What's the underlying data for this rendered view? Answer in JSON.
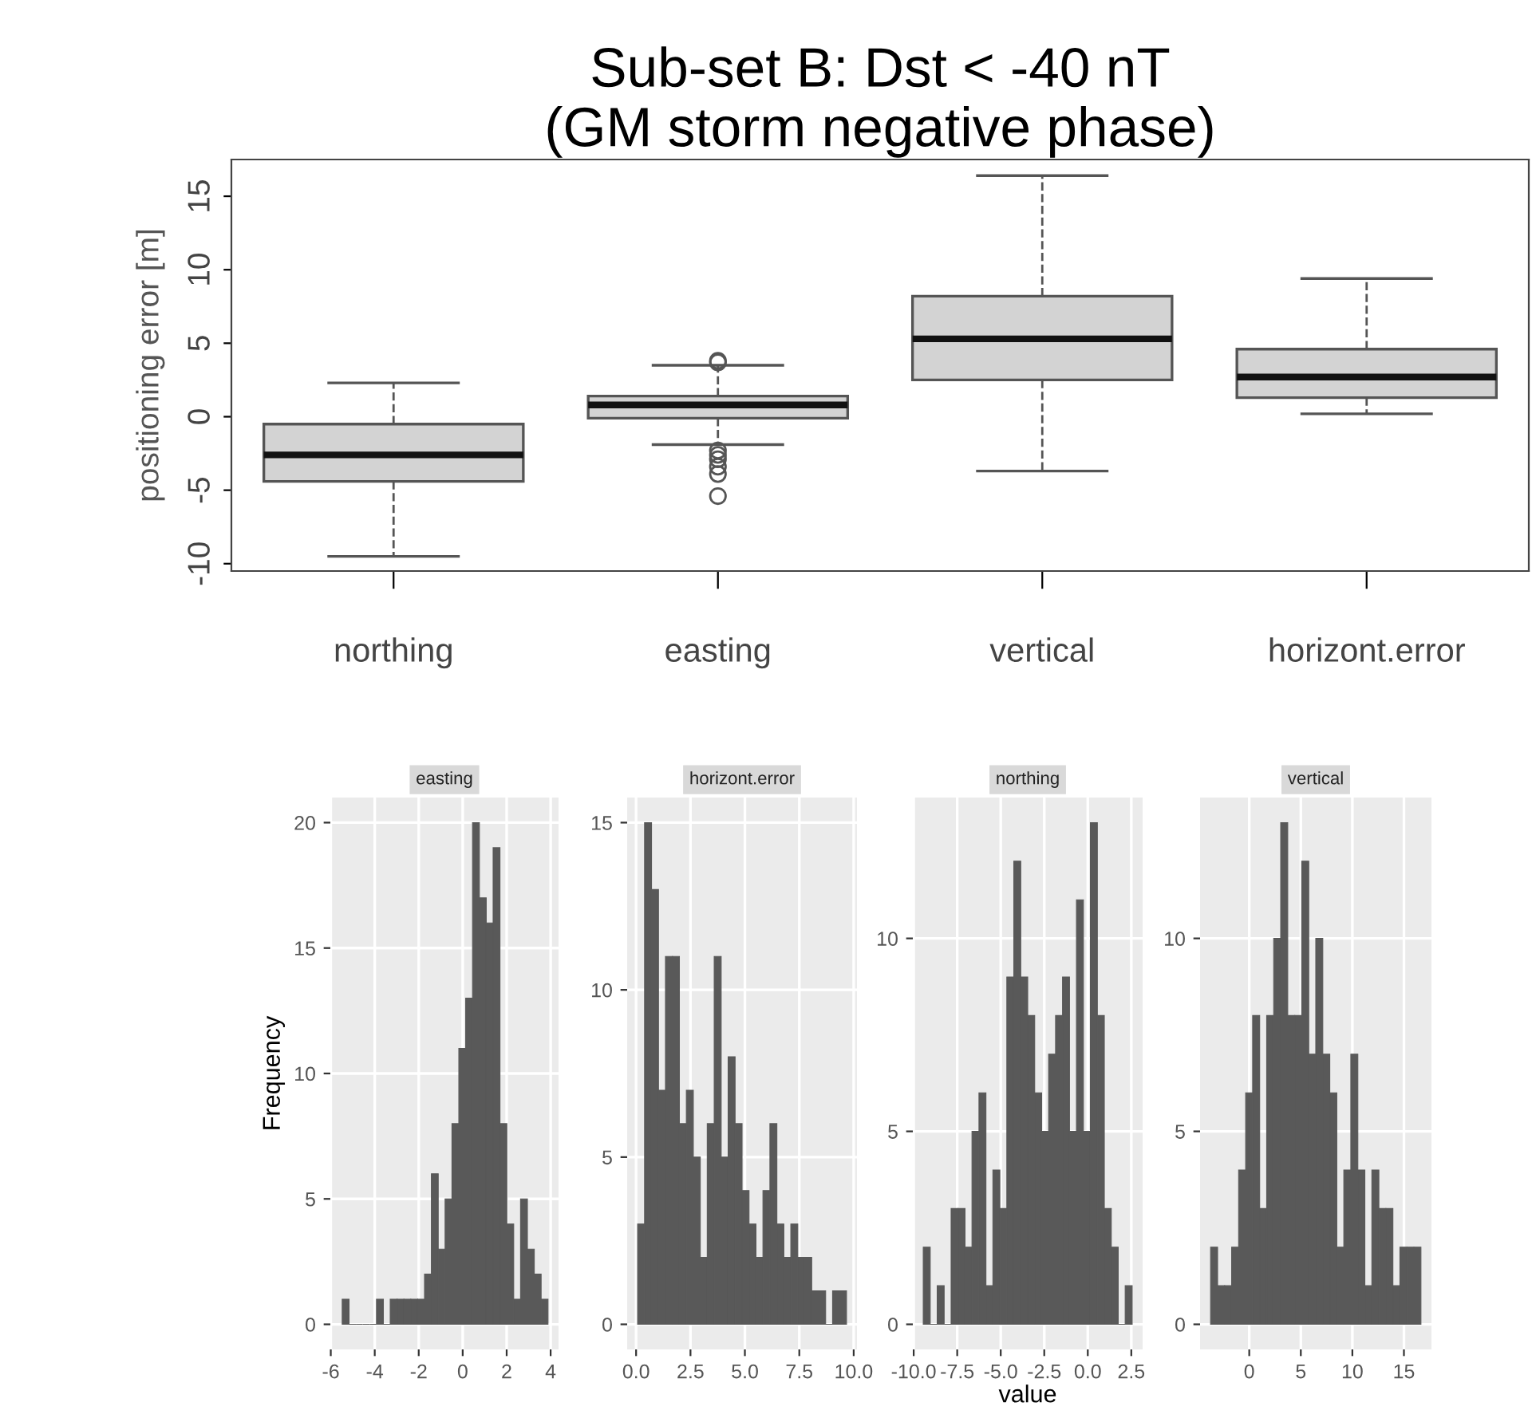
{
  "chart_data": [
    {
      "type": "box",
      "title": "Sub-set B: Dst < -40 nT\n(GM storm negative phase)",
      "ylabel": "positioning error [m]",
      "categories": [
        "northing",
        "easting",
        "vertical",
        "horizont.error"
      ],
      "boxes": [
        {
          "low": -9.5,
          "q1": -4.4,
          "median": -2.6,
          "q3": -0.5,
          "high": 2.3
        },
        {
          "low": -1.9,
          "q1": -0.1,
          "median": 0.8,
          "q3": 1.4,
          "high": 3.5,
          "outliers": [
            3.8,
            3.7,
            -2.3,
            -2.6,
            -2.9,
            -3.4,
            -3.9,
            -5.4
          ]
        },
        {
          "low": -3.7,
          "q1": 2.5,
          "median": 5.3,
          "q3": 8.2,
          "high": 16.4
        },
        {
          "low": 0.2,
          "q1": 1.3,
          "median": 2.7,
          "q3": 4.6,
          "high": 9.4
        }
      ],
      "color": "#d3d3d3",
      "ylim": [
        -10.5,
        17.5
      ],
      "yticks": [
        -10,
        -5,
        0,
        5,
        10,
        15
      ],
      "grid": false
    },
    {
      "type": "histogram",
      "title": "easting",
      "ylabel": "Frequency",
      "color": "#595959",
      "grid": true,
      "bins": [
        -5.48,
        -5.168,
        -4.856,
        -4.544,
        -4.232,
        -3.92,
        -3.608,
        -3.296,
        -2.984,
        -2.672,
        -2.36,
        -2.048,
        -1.736,
        -1.424,
        -1.112,
        -0.8,
        -0.488,
        -0.176,
        0.136,
        0.448,
        0.76,
        1.072,
        1.384,
        1.696,
        2.008,
        2.32,
        2.632,
        2.944,
        3.256,
        3.568,
        3.88
      ],
      "values": [
        1,
        0,
        0,
        0,
        0,
        1,
        0,
        1,
        1,
        1,
        1,
        1,
        2,
        6,
        3,
        5,
        8,
        11,
        13,
        20,
        17,
        16,
        19,
        8,
        4,
        1,
        5,
        3,
        2,
        1
      ],
      "xlim": [
        -6.02,
        4.36
      ],
      "xticks": [
        -6,
        -4,
        -2,
        0,
        2,
        4
      ],
      "ylim": [
        -1,
        21
      ],
      "yticks": [
        0,
        5,
        10,
        15,
        20
      ]
    },
    {
      "type": "histogram",
      "title": "horizont.error",
      "color": "#595959",
      "grid": true,
      "bins": [
        0.07,
        0.39,
        0.71,
        1.03,
        1.35,
        1.67,
        1.99,
        2.31,
        2.63,
        2.95,
        3.27,
        3.59,
        3.91,
        4.23,
        4.55,
        4.87,
        5.19,
        5.51,
        5.83,
        6.15,
        6.47,
        6.79,
        7.11,
        7.43,
        7.75,
        8.07,
        8.39,
        8.71,
        9.03,
        9.35,
        9.67
      ],
      "values": [
        3,
        15,
        13,
        7,
        11,
        11,
        6,
        7,
        5,
        2,
        6,
        11,
        5,
        8,
        6,
        4,
        3,
        2,
        4,
        6,
        3,
        2,
        3,
        2,
        2,
        1,
        1,
        0,
        1,
        1
      ],
      "xlim": [
        -0.41,
        10.15
      ],
      "xticks": [
        {
          "value": 0,
          "label": "0.0"
        },
        2.5,
        {
          "value": 5,
          "label": "5.0"
        },
        7.5,
        {
          "value": 10,
          "label": "10.0"
        }
      ],
      "ylim": [
        -0.75,
        15.75
      ],
      "yticks": [
        0,
        5,
        10,
        15
      ]
    },
    {
      "type": "histogram",
      "title": "northing",
      "xlabel": "value",
      "color": "#595959",
      "grid": true,
      "bins": [
        -9.45,
        -9.05,
        -8.65,
        -8.25,
        -7.85,
        -7.45,
        -7.05,
        -6.65,
        -6.25,
        -5.85,
        -5.45,
        -5.05,
        -4.65,
        -4.25,
        -3.85,
        -3.45,
        -3.05,
        -2.65,
        -2.25,
        -1.85,
        -1.45,
        -1.05,
        -0.65,
        -0.25,
        0.15,
        0.55,
        0.95,
        1.35,
        1.75,
        2.15,
        2.55
      ],
      "values": [
        2,
        0,
        1,
        0,
        3,
        3,
        2,
        5,
        6,
        1,
        4,
        3,
        9,
        12,
        9,
        8,
        6,
        5,
        7,
        8,
        9,
        5,
        11,
        5,
        13,
        8,
        3,
        2,
        0,
        1
      ],
      "xlim": [
        -10.05,
        3.15
      ],
      "xticks": [
        {
          "value": -10,
          "label": "-10.0"
        },
        -7.5,
        {
          "value": -5,
          "label": "-5.0"
        },
        -2.5,
        {
          "value": 0,
          "label": "0.0"
        },
        2.5
      ],
      "ylim": [
        -0.65,
        13.65
      ],
      "yticks": [
        0,
        5,
        10
      ]
    },
    {
      "type": "histogram",
      "title": "vertical",
      "color": "#595959",
      "grid": true,
      "bins": [
        -3.75,
        -3.07,
        -2.39,
        -1.71,
        -1.03,
        -0.35,
        0.33,
        1.01,
        1.69,
        2.37,
        3.05,
        3.73,
        4.41,
        5.09,
        5.77,
        6.45,
        7.13,
        7.81,
        8.49,
        9.17,
        9.85,
        10.53,
        11.21,
        11.89,
        12.57,
        13.25,
        13.93,
        14.61,
        15.29,
        15.97,
        16.65
      ],
      "values": [
        2,
        1,
        1,
        2,
        4,
        6,
        8,
        3,
        8,
        10,
        13,
        8,
        8,
        12,
        7,
        10,
        7,
        6,
        2,
        4,
        7,
        4,
        1,
        4,
        3,
        3,
        1,
        2,
        2,
        2
      ],
      "xlim": [
        -4.77,
        17.67
      ],
      "xticks": [
        0,
        5,
        10,
        15
      ],
      "ylim": [
        -0.65,
        13.65
      ],
      "yticks": [
        0,
        5,
        10
      ]
    }
  ]
}
